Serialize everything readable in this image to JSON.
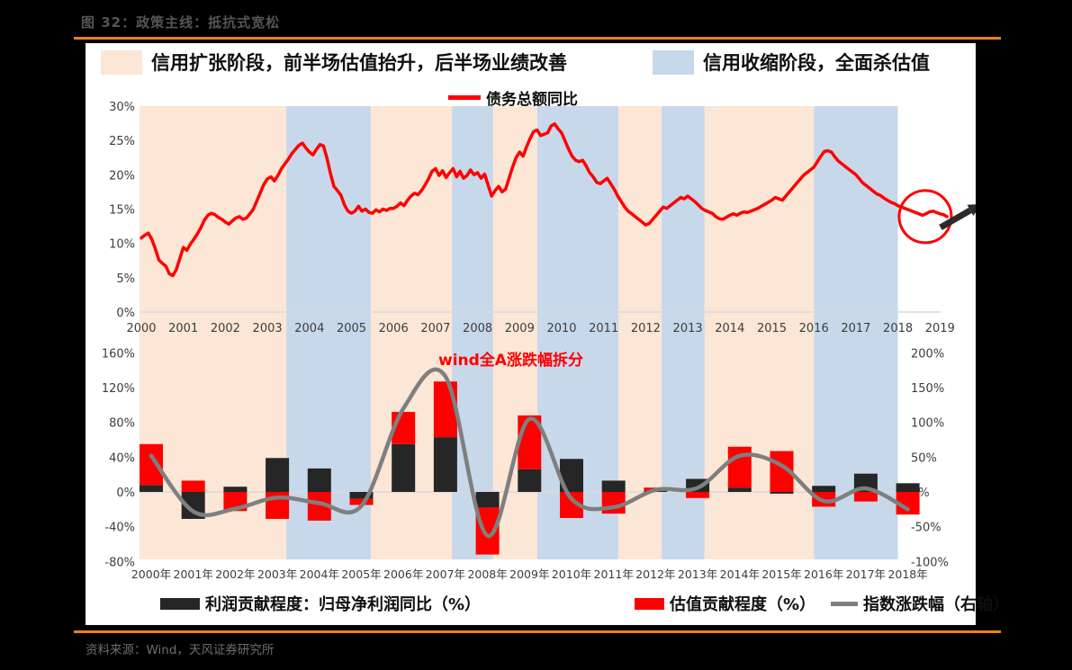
{
  "page": {
    "title": "图 32：政策主线：抵抗式宽松",
    "source": "资料来源：Wind，天风证券研究所"
  },
  "colors": {
    "accent_rule": "#ED7E1F",
    "expansion": "#FCE6D5",
    "contraction": "#C8D8EB",
    "debt_line": "#FE0000",
    "profit_bar": "#262626",
    "valuation_bar": "#FE0000",
    "index_line": "#7f7f7f",
    "zero_line": "#d9d9d9",
    "tick_text": "#3d3d3d",
    "annotation": "#FE0000",
    "arrow": "#2b2b2b"
  },
  "legends": {
    "expansion": "信用扩张阶段，前半场估值抬升，后半场业绩改善",
    "contraction": "信用收缩阶段，全面杀估值",
    "debt_line": "债务总额同比",
    "profit": "利润贡献程度：归母净利润同比（%）",
    "valuation": "估值贡献程度（%）",
    "index": "指数涨跌幅（右轴）"
  },
  "phase_bands": [
    {
      "phase": "expansion",
      "from": 2000.0,
      "to": 2003.45
    },
    {
      "phase": "contraction",
      "from": 2003.45,
      "to": 2005.46
    },
    {
      "phase": "expansion",
      "from": 2005.46,
      "to": 2007.39
    },
    {
      "phase": "contraction",
      "from": 2007.39,
      "to": 2008.37
    },
    {
      "phase": "expansion",
      "from": 2008.37,
      "to": 2009.42
    },
    {
      "phase": "contraction",
      "from": 2009.42,
      "to": 2011.35
    },
    {
      "phase": "expansion",
      "from": 2011.35,
      "to": 2012.38
    },
    {
      "phase": "contraction",
      "from": 2012.38,
      "to": 2013.4
    },
    {
      "phase": "expansion",
      "from": 2013.4,
      "to": 2016.0
    },
    {
      "phase": "contraction",
      "from": 2016.0,
      "to": 2018.0
    }
  ],
  "chart_data": [
    {
      "type": "line",
      "title": "债务总额同比",
      "x_start_year": 2000,
      "points_per_year": 12,
      "x_tick_labels": [
        "2000",
        "2001",
        "2002",
        "2003",
        "2004",
        "2005",
        "2006",
        "2007",
        "2008",
        "2009",
        "2010",
        "2011",
        "2012",
        "2013",
        "2014",
        "2015",
        "2016",
        "2017",
        "2018",
        "2019"
      ],
      "y_ticks": [
        "0%",
        "5%",
        "10%",
        "15%",
        "20%",
        "25%",
        "30%"
      ],
      "ylim": [
        0,
        30
      ],
      "values": [
        10.8,
        11.2,
        11.5,
        10.6,
        9.2,
        7.6,
        7.1,
        6.7,
        5.6,
        5.3,
        6.2,
        7.8,
        9.4,
        9.0,
        9.9,
        10.6,
        11.4,
        12.3,
        13.4,
        14.1,
        14.4,
        14.2,
        13.8,
        13.5,
        13.1,
        12.8,
        13.3,
        13.7,
        13.9,
        13.5,
        13.7,
        14.3,
        15.0,
        16.2,
        17.4,
        18.6,
        19.4,
        19.7,
        19.1,
        19.9,
        20.9,
        21.6,
        22.3,
        23.1,
        23.7,
        24.3,
        24.6,
        23.9,
        23.3,
        22.9,
        23.7,
        24.4,
        24.2,
        22.4,
        20.2,
        18.3,
        17.7,
        17.0,
        15.6,
        14.7,
        14.4,
        14.7,
        15.4,
        14.7,
        15.0,
        14.5,
        14.4,
        14.9,
        14.6,
        15.0,
        14.8,
        15.1,
        15.1,
        15.4,
        15.9,
        15.5,
        16.3,
        16.9,
        17.3,
        17.1,
        17.7,
        18.5,
        19.4,
        20.5,
        20.9,
        19.9,
        20.6,
        19.6,
        20.3,
        20.9,
        19.7,
        20.5,
        19.5,
        19.9,
        20.7,
        20.0,
        20.3,
        19.5,
        20.1,
        18.5,
        16.9,
        17.7,
        18.3,
        17.5,
        17.9,
        19.5,
        21.1,
        22.5,
        23.3,
        22.7,
        24.1,
        25.3,
        26.3,
        26.5,
        25.7,
        25.9,
        26.1,
        27.1,
        27.4,
        26.7,
        26.1,
        24.9,
        23.7,
        22.7,
        22.1,
        21.9,
        22.1,
        21.3,
        20.3,
        19.7,
        18.9,
        18.7,
        19.1,
        19.5,
        18.7,
        17.9,
        16.9,
        16.1,
        15.3,
        14.7,
        14.3,
        13.9,
        13.5,
        13.1,
        12.7,
        12.9,
        13.5,
        14.1,
        14.7,
        15.3,
        15.1,
        15.5,
        15.9,
        16.3,
        16.7,
        16.5,
        16.9,
        16.5,
        16.1,
        15.6,
        15.1,
        14.8,
        14.6,
        14.4,
        13.9,
        13.6,
        13.5,
        13.8,
        14.1,
        14.3,
        14.1,
        14.4,
        14.6,
        14.5,
        14.7,
        14.9,
        15.1,
        15.4,
        15.7,
        16.0,
        16.3,
        16.7,
        16.5,
        16.3,
        16.9,
        17.5,
        18.1,
        18.7,
        19.3,
        19.9,
        20.3,
        20.7,
        21.1,
        21.9,
        22.7,
        23.4,
        23.5,
        23.3,
        22.6,
        22.0,
        21.6,
        21.2,
        20.8,
        20.4,
        20.0,
        19.4,
        18.8,
        18.4,
        18.0,
        17.6,
        17.2,
        17.0,
        16.6,
        16.3,
        16.0,
        15.8,
        15.5,
        15.3,
        15.1,
        14.9,
        14.7,
        14.5,
        14.3,
        14.1,
        14.3,
        14.6,
        14.7,
        14.5,
        14.3,
        14.2,
        13.9
      ],
      "annotation": {
        "shape": "circle-arrow",
        "x_year": 2018.65,
        "value": 13.9
      }
    },
    {
      "type": "bar",
      "title": "wind全A涨跌幅拆分",
      "categories": [
        "2000年",
        "2001年",
        "2002年",
        "2003年",
        "2004年",
        "2005年",
        "2006年",
        "2007年",
        "2008年",
        "2009年",
        "2010年",
        "2011年",
        "2012年",
        "2013年",
        "2014年",
        "2015年",
        "2016年",
        "2017年",
        "2018年"
      ],
      "left_ticks": [
        "160%",
        "120%",
        "80%",
        "40%",
        "0%",
        "-40%",
        "-80%"
      ],
      "right_ticks": [
        "200%",
        "150%",
        "100%",
        "50%",
        "0%",
        "-50%",
        "-100%"
      ],
      "ylim_left": [
        -80,
        160
      ],
      "ylim_right": [
        -100,
        200
      ],
      "series": [
        {
          "name": "利润贡献程度：归母净利润同比（%）",
          "type": "bar",
          "axis": "left",
          "values": [
            8,
            -31,
            6,
            39,
            27,
            -8,
            55,
            63,
            -18,
            26,
            38,
            13,
            1,
            15,
            5,
            -2,
            7,
            21,
            10
          ]
        },
        {
          "name": "估值贡献程度（%）",
          "type": "bar",
          "axis": "left",
          "values": [
            47,
            13,
            -22,
            -31,
            -33,
            -7,
            37,
            64,
            -54,
            62,
            -30,
            -25,
            4,
            -7,
            47,
            47,
            -17,
            -11,
            -26
          ]
        },
        {
          "name": "指数涨跌幅（右轴）",
          "type": "line",
          "axis": "right",
          "values": [
            52,
            -28,
            -24,
            -8,
            -16,
            -20,
            120,
            166,
            -63,
            105,
            -10,
            -22,
            3,
            6,
            52,
            38,
            -13,
            5,
            -25
          ]
        }
      ]
    }
  ]
}
